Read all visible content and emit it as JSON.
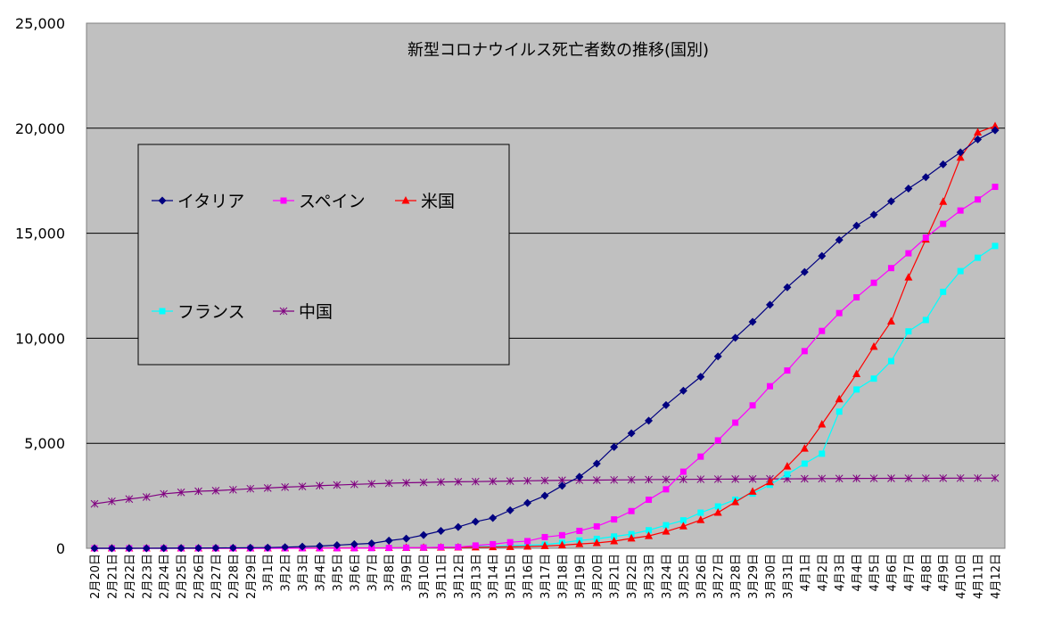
{
  "chart_data": {
    "type": "line",
    "title": "新型コロナウイルス死亡者数の推移(国別)",
    "xlabel": "",
    "ylabel": "",
    "ylim": [
      0,
      25000
    ],
    "yticks": [
      "0",
      "5,000",
      "10,000",
      "15,000",
      "20,000",
      "25,000"
    ],
    "ytick_values": [
      0,
      5000,
      10000,
      15000,
      20000,
      25000
    ],
    "grid": true,
    "legend_position": "top-left",
    "categories": [
      "2月20日",
      "2月21日",
      "2月22日",
      "2月23日",
      "2月24日",
      "2月25日",
      "2月26日",
      "2月27日",
      "2月28日",
      "2月29日",
      "3月1日",
      "3月2日",
      "3月3日",
      "3月4日",
      "3月5日",
      "3月6日",
      "3月7日",
      "3月8日",
      "3月9日",
      "3月10日",
      "3月11日",
      "3月12日",
      "3月13日",
      "3月14日",
      "3月15日",
      "3月16日",
      "3月17日",
      "3月18日",
      "3月19日",
      "3月20日",
      "3月21日",
      "3月22日",
      "3月23日",
      "3月24日",
      "3月25日",
      "3月26日",
      "3月27日",
      "3月28日",
      "3月29日",
      "3月30日",
      "3月31日",
      "4月1日",
      "4月2日",
      "4月3日",
      "4月4日",
      "4月5日",
      "4月6日",
      "4月7日",
      "4月8日",
      "4月9日",
      "4月10日",
      "4月11日",
      "4月12日"
    ],
    "series": [
      {
        "name": "イタリア",
        "color": "#000080",
        "marker": "diamond",
        "values": [
          0,
          0,
          0,
          2,
          5,
          10,
          12,
          17,
          21,
          29,
          34,
          52,
          79,
          107,
          148,
          197,
          233,
          366,
          463,
          631,
          827,
          1016,
          1266,
          1441,
          1809,
          2158,
          2503,
          2978,
          3405,
          4032,
          4825,
          5476,
          6077,
          6820,
          7503,
          8165,
          9134,
          10023,
          10779,
          11591,
          12428,
          13155,
          13915,
          14681,
          15362,
          15887,
          16523,
          17127,
          17669,
          18279,
          18849,
          19468,
          19899
        ]
      },
      {
        "name": "スペイン",
        "color": "#FF00FF",
        "marker": "square",
        "values": [
          0,
          0,
          0,
          0,
          0,
          0,
          0,
          0,
          0,
          0,
          0,
          0,
          1,
          2,
          3,
          5,
          10,
          17,
          28,
          35,
          54,
          55,
          133,
          195,
          289,
          342,
          533,
          623,
          830,
          1043,
          1375,
          1772,
          2311,
          2808,
          3647,
          4365,
          5138,
          5982,
          6803,
          7716,
          8464,
          9387,
          10348,
          11198,
          11947,
          12641,
          13341,
          14045,
          14792,
          15447,
          16081,
          16606,
          17209
        ]
      },
      {
        "name": "米国",
        "color": "#FF0000",
        "marker": "triangle",
        "values": [
          0,
          0,
          0,
          0,
          0,
          0,
          0,
          0,
          0,
          1,
          1,
          6,
          9,
          11,
          12,
          15,
          19,
          22,
          26,
          30,
          38,
          41,
          48,
          57,
          68,
          86,
          109,
          150,
          206,
          255,
          340,
          471,
          590,
          800,
          1050,
          1350,
          1700,
          2200,
          2700,
          3150,
          3900,
          4750,
          5900,
          7100,
          8300,
          9600,
          10800,
          12900,
          14700,
          16500,
          18600,
          19800,
          20100
        ]
      },
      {
        "name": "フランス",
        "color": "#00FFFF",
        "marker": "square",
        "values": [
          1,
          1,
          1,
          1,
          1,
          1,
          2,
          2,
          2,
          2,
          2,
          3,
          4,
          4,
          6,
          9,
          16,
          19,
          25,
          33,
          48,
          61,
          79,
          91,
          127,
          148,
          175,
          264,
          372,
          450,
          562,
          674,
          860,
          1100,
          1331,
          1696,
          1995,
          2314,
          2606,
          3024,
          3523,
          4032,
          4503,
          6507,
          7560,
          8078,
          8911,
          10328,
          10869,
          12210,
          13197,
          13832,
          14393
        ]
      },
      {
        "name": "中国",
        "color": "#800080",
        "marker": "star",
        "values": [
          2118,
          2236,
          2345,
          2442,
          2592,
          2663,
          2715,
          2744,
          2788,
          2835,
          2870,
          2912,
          2943,
          2981,
          3012,
          3042,
          3070,
          3097,
          3119,
          3136,
          3158,
          3169,
          3176,
          3189,
          3199,
          3213,
          3226,
          3237,
          3245,
          3248,
          3255,
          3261,
          3270,
          3277,
          3281,
          3287,
          3292,
          3295,
          3300,
          3304,
          3305,
          3312,
          3318,
          3322,
          3326,
          3329,
          3331,
          3333,
          3335,
          3336,
          3339,
          3339,
          3341
        ]
      }
    ]
  }
}
